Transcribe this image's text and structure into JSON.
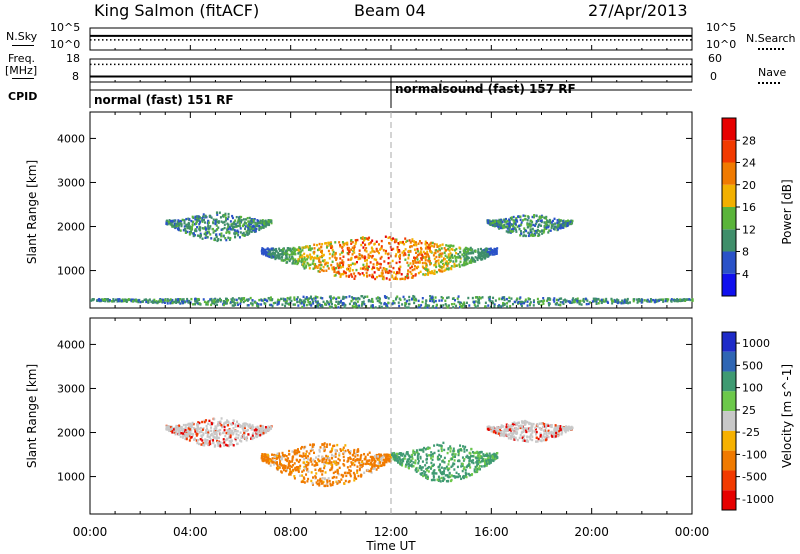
{
  "header": {
    "station": "King Salmon (fitACF)",
    "beam": "Beam 04",
    "date": "27/Apr/2013"
  },
  "left_labels": {
    "nsky": "N.Sky",
    "freq_line1": "Freq.",
    "freq_line2": "[MHz]",
    "cpid": "CPID"
  },
  "right_labels": {
    "nsearch": "N.Search",
    "nave": "Nave"
  },
  "chart_data": [
    {
      "type": "line",
      "panel": "noise",
      "series": [
        {
          "name": "N.Sky",
          "style": "solid",
          "level_exponent": 3.2
        },
        {
          "name": "N.Search",
          "style": "dotted",
          "level_exponent": 2.3
        }
      ],
      "left_ticks": [
        "10^5",
        "10^0"
      ],
      "right_ticks": [
        "10^5",
        "10^0"
      ]
    },
    {
      "type": "line",
      "panel": "frequency-nave",
      "series": [
        {
          "name": "Freq.",
          "style": "solid",
          "value": 10.4
        },
        {
          "name": "Nave",
          "style": "dotted",
          "value": 46
        }
      ],
      "left_ticks": [
        "18",
        "8"
      ],
      "right_ticks": [
        "60",
        "0"
      ],
      "ylim_left": [
        8,
        18
      ],
      "ylim_right": [
        0,
        60
      ]
    },
    {
      "type": "table",
      "panel": "cpid",
      "segments": [
        {
          "start_hour": 0,
          "label": "normal (fast) 151 RF"
        },
        {
          "start_hour": 12,
          "label": "normalsound (fast) 157 RF"
        }
      ]
    },
    {
      "type": "heatmap",
      "panel": "power",
      "ylabel": "Slant Range [km]",
      "xlim": [
        0,
        24
      ],
      "ylim": [
        150,
        4600
      ],
      "yticks": [
        1000,
        2000,
        3000,
        4000
      ],
      "colorbar_label": "Power [dB]",
      "colorbar_ticks": [
        "4",
        "8",
        "12",
        "16",
        "20",
        "24",
        "28"
      ],
      "colorbar_colors": [
        "#1010ee",
        "#2a52c8",
        "#3f8e6a",
        "#5ab43a",
        "#f2b000",
        "#f07a00",
        "#f23a00",
        "#e60000"
      ],
      "features": [
        {
          "name": "morning band",
          "from_hour": 3.0,
          "to_hour": 7.2,
          "range_km": [
            1700,
            2350
          ],
          "power_db": 7
        },
        {
          "name": "main echo",
          "from_hour": 6.8,
          "to_hour": 16.2,
          "range_km": [
            800,
            1800
          ],
          "power_db": 22
        },
        {
          "name": "evening band",
          "from_hour": 15.8,
          "to_hour": 19.2,
          "range_km": [
            1800,
            2300
          ],
          "power_db": 8
        },
        {
          "name": "near ground scatter",
          "from_hour": 0,
          "to_hour": 24,
          "range_km": [
            180,
            450
          ],
          "power_db": 6
        }
      ]
    },
    {
      "type": "heatmap",
      "panel": "velocity",
      "xlabel": "Time UT",
      "ylabel": "Slant Range [km]",
      "xlim": [
        0,
        24
      ],
      "ylim": [
        150,
        4600
      ],
      "yticks": [
        1000,
        2000,
        3000,
        4000
      ],
      "xticks": [
        "00:00",
        "04:00",
        "08:00",
        "12:00",
        "16:00",
        "20:00",
        "00:00"
      ],
      "colorbar_label": "Velocity [m s^-1]",
      "colorbar_ticks": [
        "1000",
        "500",
        "100",
        "25",
        "-25",
        "-100",
        "-500",
        "-1000"
      ],
      "colorbar_colors": [
        "#1e2bc8",
        "#2f66b4",
        "#3f9a72",
        "#6cc84a",
        "#c8c8c8",
        "#f6b100",
        "#f07a00",
        "#f23a00",
        "#e60000"
      ],
      "features": [
        {
          "name": "morning band",
          "from_hour": 3.0,
          "to_hour": 7.2,
          "range_km": [
            1700,
            2350
          ],
          "velocity": 0
        },
        {
          "name": "main echo west",
          "from_hour": 6.8,
          "to_hour": 12.0,
          "range_km": [
            800,
            1800
          ],
          "velocity": -100
        },
        {
          "name": "main echo east",
          "from_hour": 12.0,
          "to_hour": 16.2,
          "range_km": [
            900,
            1800
          ],
          "velocity": 100
        },
        {
          "name": "evening band",
          "from_hour": 15.8,
          "to_hour": 19.2,
          "range_km": [
            1800,
            2300
          ],
          "velocity": 0
        }
      ]
    }
  ]
}
